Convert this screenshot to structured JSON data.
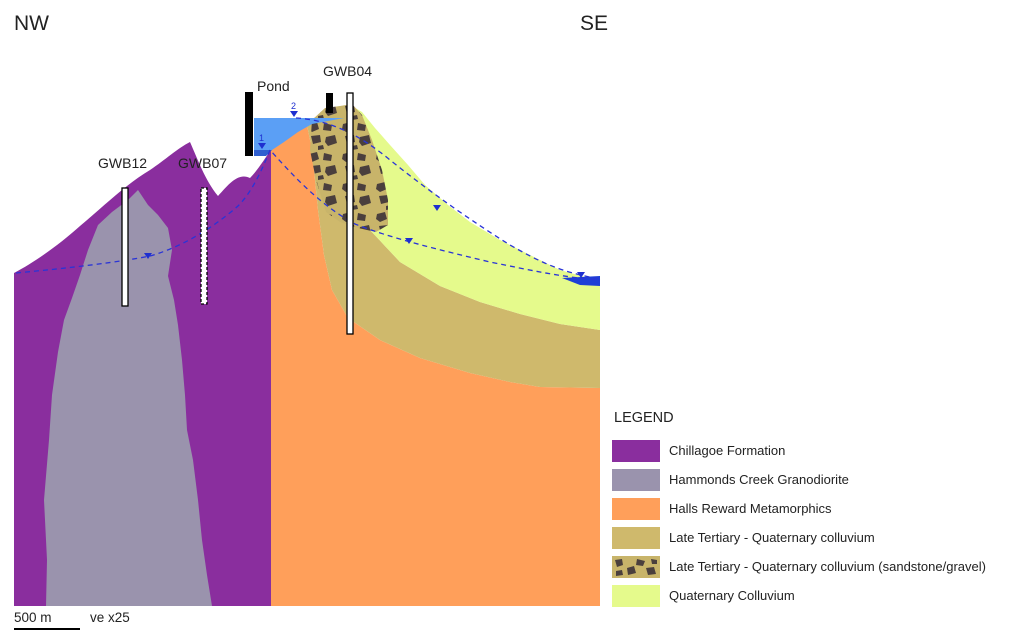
{
  "directions": {
    "left": "NW",
    "right": "SE"
  },
  "wells": [
    {
      "id": "gwb12",
      "label": "GWB12"
    },
    {
      "id": "gwb07",
      "label": "GWB07"
    },
    {
      "id": "pond",
      "label": "Pond"
    },
    {
      "id": "gwb04",
      "label": "GWB04"
    }
  ],
  "water_level_markers": [
    {
      "label": "1"
    },
    {
      "label": "2"
    }
  ],
  "legend": {
    "title": "LEGEND",
    "items": [
      {
        "label": "Chillagoe Formation",
        "color": "#8a2e9e"
      },
      {
        "label": "Hammonds Creek Granodiorite",
        "color": "#9a93ad"
      },
      {
        "label": "Halls Reward Metamorphics",
        "color": "#ff9f5a"
      },
      {
        "label": "Late Tertiary - Quaternary colluvium",
        "color": "#cfb96c"
      },
      {
        "label": "Late Tertiary - Quaternary colluvium (sandstone/gravel)",
        "color": "#c8b46a",
        "pattern": "gravel"
      },
      {
        "label": "Quaternary Colluvium",
        "color": "#e5fa8c"
      }
    ]
  },
  "scale": {
    "label": "500 m",
    "exaggeration": "ve x25"
  }
}
